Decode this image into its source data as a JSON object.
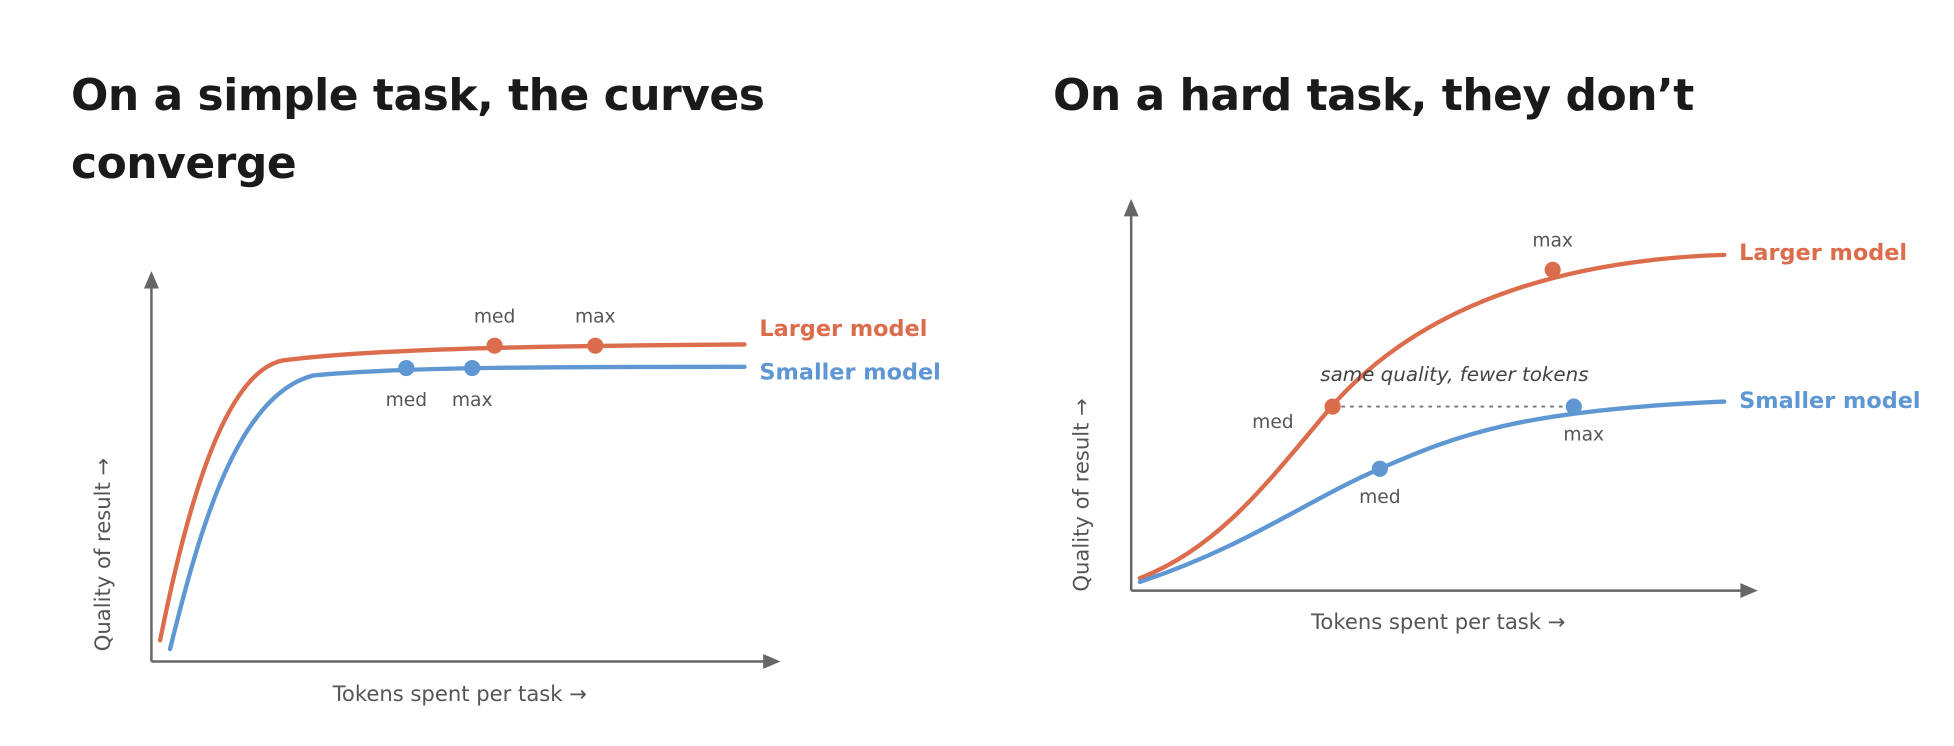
{
  "panels": [
    {
      "title": "On a simple task, the curves converge",
      "x_axis_label": "Tokens spent per task →",
      "y_axis_label": "Quality of result →",
      "series": [
        {
          "name": "Larger model",
          "point_labels": [
            "med",
            "max"
          ]
        },
        {
          "name": "Smaller model",
          "point_labels": [
            "med",
            "max"
          ]
        }
      ]
    },
    {
      "title": "On a hard task, they don’t",
      "x_axis_label": "Tokens spent per task →",
      "y_axis_label": "Quality of result →",
      "annotation": "same quality, fewer tokens",
      "series": [
        {
          "name": "Larger model",
          "point_labels": [
            "med",
            "max"
          ]
        },
        {
          "name": "Smaller model",
          "point_labels": [
            "med",
            "max"
          ]
        }
      ]
    }
  ]
}
